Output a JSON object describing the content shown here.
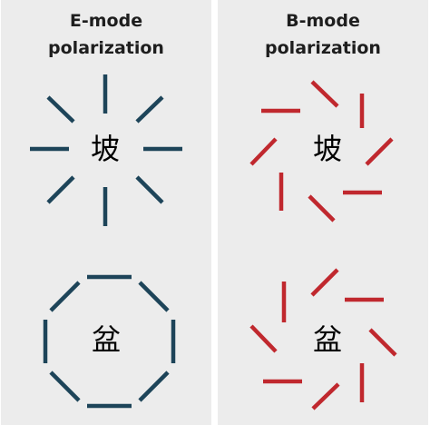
{
  "panels": {
    "e_mode": {
      "title_line1": "E-mode",
      "title_line2": "polarization",
      "glyph_top": "坡",
      "glyph_bottom": "盆",
      "color": "#1d4459"
    },
    "b_mode": {
      "title_line1": "B-mode",
      "title_line2": "polarization",
      "glyph_top": "坡",
      "glyph_bottom": "盆",
      "color": "#c0282e"
    }
  },
  "background_color": "#ececec"
}
